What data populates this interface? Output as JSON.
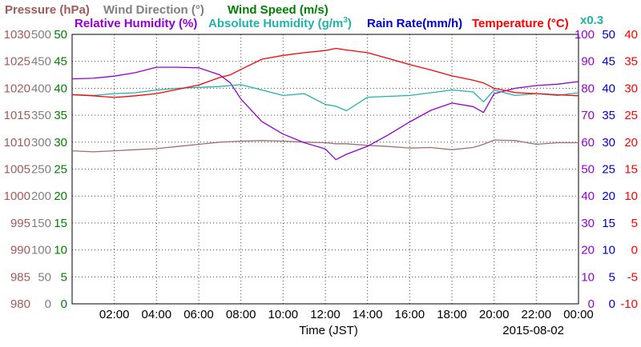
{
  "chart_data": {
    "type": "line",
    "date": "2015-08-02",
    "xlabel": "Time (JST)",
    "x_ticks": [
      "02:00",
      "04:00",
      "06:00",
      "08:00",
      "10:00",
      "12:00",
      "14:00",
      "16:00",
      "18:00",
      "20:00",
      "22:00",
      "00:00"
    ],
    "x_hours": [
      0,
      1,
      2,
      3,
      4,
      5,
      6,
      7,
      7.5,
      8,
      9,
      10,
      11,
      12,
      12.5,
      13,
      14,
      15,
      16,
      17,
      18,
      19,
      19.5,
      20,
      21,
      22,
      23,
      24
    ],
    "headers": {
      "pressure": "Pressure (hPa)",
      "wind_direction": "Wind Direction (°)",
      "wind_speed": "Wind Speed (m/s)",
      "relative_humidity": "Relative Humidity (%)",
      "absolute_humidity": "Absolute Humidity (g/m",
      "absolute_humidity_sup": "3",
      "absolute_humidity_close": ")",
      "rain_rate": "Rain Rate(mm/h)",
      "temperature": "Temperature (°C)",
      "x_factor": "x0.3"
    },
    "axes": {
      "pressure": {
        "ticks": [
          "980",
          "985",
          "990",
          "995",
          "1000",
          "1005",
          "1010",
          "1015",
          "1020",
          "1025",
          "1030"
        ],
        "color": "#a05a5a"
      },
      "wind_direction": {
        "ticks": [
          "0",
          "50",
          "100",
          "150",
          "200",
          "250",
          "300",
          "350",
          "400",
          "450",
          "500"
        ],
        "color": "#808080"
      },
      "wind_speed": {
        "ticks": [
          "0",
          "5",
          "10",
          "15",
          "20",
          "25",
          "30",
          "35",
          "40",
          "45",
          "50"
        ],
        "color": "#008000"
      },
      "relative_humidity": {
        "ticks": [
          "0",
          "10",
          "20",
          "30",
          "40",
          "50",
          "60",
          "70",
          "80",
          "90",
          "100"
        ],
        "color": "#9400d3"
      },
      "rain_rate": {
        "ticks": [
          "0",
          "5",
          "10",
          "15",
          "20",
          "25",
          "30",
          "35",
          "40",
          "45",
          "50"
        ],
        "color": "#0000cd"
      },
      "temperature": {
        "ticks": [
          "-10",
          "-5",
          "0",
          "5",
          "10",
          "15",
          "20",
          "25",
          "30",
          "35",
          "40"
        ],
        "color": "#ff0000"
      }
    },
    "series": [
      {
        "name": "Pressure (hPa)",
        "color": "#a07070",
        "ylim": [
          980,
          1030
        ],
        "values": [
          1008.4,
          1008.2,
          1008.4,
          1008.6,
          1008.8,
          1009.2,
          1009.6,
          1010.0,
          1010.1,
          1010.2,
          1010.3,
          1010.2,
          1010.0,
          1009.9,
          1009.7,
          1009.7,
          1009.4,
          1009.2,
          1008.9,
          1009.0,
          1008.6,
          1009.0,
          1009.6,
          1010.4,
          1010.3,
          1009.6,
          1009.9,
          1009.9
        ]
      },
      {
        "name": "Relative Humidity (%)",
        "color": "#9400d3",
        "ylim": [
          0,
          100
        ],
        "values": [
          83.5,
          83.7,
          84.5,
          85.8,
          87.8,
          87.8,
          87.6,
          85.0,
          82.0,
          76.0,
          67.6,
          63.0,
          59.8,
          57.5,
          53.5,
          55.5,
          58.5,
          62.8,
          67.5,
          71.8,
          74.5,
          73.2,
          71.0,
          78.0,
          80.0,
          81.0,
          81.5,
          82.5
        ]
      },
      {
        "name": "Absolute Humidity (g/m3)",
        "color": "#20b2aa",
        "ylim": [
          0,
          30
        ],
        "values": [
          23.3,
          23.2,
          23.4,
          23.5,
          23.8,
          24.0,
          24.1,
          24.2,
          24.3,
          24.4,
          23.8,
          23.2,
          23.4,
          22.2,
          22.0,
          21.5,
          23.0,
          23.1,
          23.2,
          23.5,
          23.8,
          23.6,
          22.5,
          23.8,
          23.2,
          23.4,
          23.2,
          23.5
        ]
      },
      {
        "name": "Temperature (°C)",
        "color": "#ff0000",
        "ylim": [
          -10,
          40
        ],
        "values": [
          28.8,
          28.6,
          28.3,
          28.6,
          29.0,
          29.8,
          30.6,
          32.0,
          32.5,
          33.5,
          35.4,
          36.1,
          36.6,
          37.0,
          37.4,
          37.1,
          36.6,
          35.5,
          34.4,
          33.4,
          32.3,
          31.5,
          31.0,
          30.0,
          29.2,
          29.0,
          28.8,
          28.6
        ]
      }
    ]
  }
}
